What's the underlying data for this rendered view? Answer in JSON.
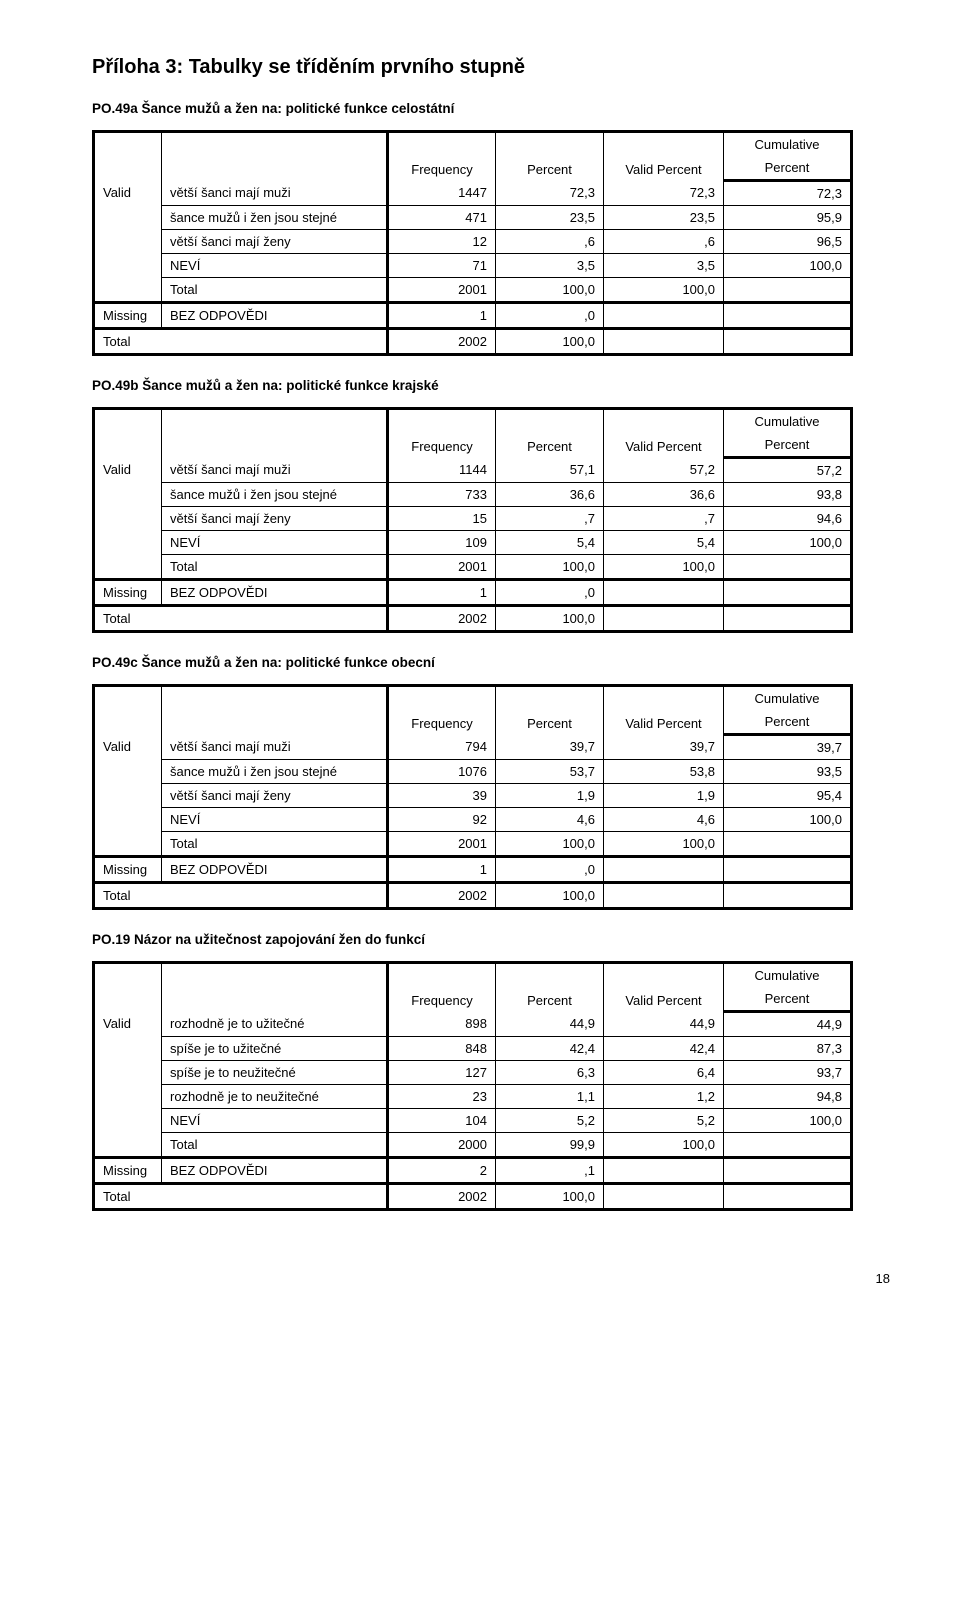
{
  "heading": "Příloha 3: Tabulky se tříděním prvního stupně",
  "col_headers": {
    "frequency": "Frequency",
    "percent": "Percent",
    "valid_percent": "Valid Percent",
    "cumulative": "Cumulative",
    "cumulative2": "Percent"
  },
  "stub": {
    "valid": "Valid",
    "missing": "Missing",
    "total": "Total"
  },
  "tables": [
    {
      "title": "PO.49a Šance mužů a žen na: politické funkce celostátní",
      "rows": [
        {
          "group": "valid",
          "label": "větší šanci mají muži",
          "f": "1447",
          "p": "72,3",
          "vp": "72,3",
          "cp": "72,3"
        },
        {
          "group": "valid",
          "label": "šance mužů i žen jsou stejné",
          "f": "471",
          "p": "23,5",
          "vp": "23,5",
          "cp": "95,9"
        },
        {
          "group": "valid",
          "label": "větší šanci mají ženy",
          "f": "12",
          "p": ",6",
          "vp": ",6",
          "cp": "96,5"
        },
        {
          "group": "valid",
          "label": "NEVÍ",
          "f": "71",
          "p": "3,5",
          "vp": "3,5",
          "cp": "100,0"
        },
        {
          "group": "valid",
          "label": "Total",
          "f": "2001",
          "p": "100,0",
          "vp": "100,0",
          "cp": ""
        },
        {
          "group": "missing",
          "label": "BEZ ODPOVĚDI",
          "f": "1",
          "p": ",0",
          "vp": "",
          "cp": ""
        },
        {
          "group": "total",
          "label": "",
          "f": "2002",
          "p": "100,0",
          "vp": "",
          "cp": ""
        }
      ]
    },
    {
      "title": "PO.49b Šance mužů a žen na: politické funkce krajské",
      "rows": [
        {
          "group": "valid",
          "label": "větší šanci mají muži",
          "f": "1144",
          "p": "57,1",
          "vp": "57,2",
          "cp": "57,2"
        },
        {
          "group": "valid",
          "label": "šance mužů i žen jsou stejné",
          "f": "733",
          "p": "36,6",
          "vp": "36,6",
          "cp": "93,8"
        },
        {
          "group": "valid",
          "label": "větší šanci mají ženy",
          "f": "15",
          "p": ",7",
          "vp": ",7",
          "cp": "94,6"
        },
        {
          "group": "valid",
          "label": "NEVÍ",
          "f": "109",
          "p": "5,4",
          "vp": "5,4",
          "cp": "100,0"
        },
        {
          "group": "valid",
          "label": "Total",
          "f": "2001",
          "p": "100,0",
          "vp": "100,0",
          "cp": ""
        },
        {
          "group": "missing",
          "label": "BEZ ODPOVĚDI",
          "f": "1",
          "p": ",0",
          "vp": "",
          "cp": ""
        },
        {
          "group": "total",
          "label": "",
          "f": "2002",
          "p": "100,0",
          "vp": "",
          "cp": ""
        }
      ]
    },
    {
      "title": "PO.49c Šance mužů a žen na: politické funkce obecní",
      "rows": [
        {
          "group": "valid",
          "label": "větší šanci mají muži",
          "f": "794",
          "p": "39,7",
          "vp": "39,7",
          "cp": "39,7"
        },
        {
          "group": "valid",
          "label": "šance mužů i žen jsou stejné",
          "f": "1076",
          "p": "53,7",
          "vp": "53,8",
          "cp": "93,5"
        },
        {
          "group": "valid",
          "label": "větší šanci mají ženy",
          "f": "39",
          "p": "1,9",
          "vp": "1,9",
          "cp": "95,4"
        },
        {
          "group": "valid",
          "label": "NEVÍ",
          "f": "92",
          "p": "4,6",
          "vp": "4,6",
          "cp": "100,0"
        },
        {
          "group": "valid",
          "label": "Total",
          "f": "2001",
          "p": "100,0",
          "vp": "100,0",
          "cp": ""
        },
        {
          "group": "missing",
          "label": "BEZ ODPOVĚDI",
          "f": "1",
          "p": ",0",
          "vp": "",
          "cp": ""
        },
        {
          "group": "total",
          "label": "",
          "f": "2002",
          "p": "100,0",
          "vp": "",
          "cp": ""
        }
      ]
    },
    {
      "title": "PO.19 Názor na užitečnost zapojování žen do funkcí",
      "rows": [
        {
          "group": "valid",
          "label": "rozhodně je to užitečné",
          "f": "898",
          "p": "44,9",
          "vp": "44,9",
          "cp": "44,9"
        },
        {
          "group": "valid",
          "label": "spíše je to užitečné",
          "f": "848",
          "p": "42,4",
          "vp": "42,4",
          "cp": "87,3"
        },
        {
          "group": "valid",
          "label": "spíše je to neužitečné",
          "f": "127",
          "p": "6,3",
          "vp": "6,4",
          "cp": "93,7"
        },
        {
          "group": "valid",
          "label": "rozhodně je to neužitečné",
          "f": "23",
          "p": "1,1",
          "vp": "1,2",
          "cp": "94,8"
        },
        {
          "group": "valid",
          "label": "NEVÍ",
          "f": "104",
          "p": "5,2",
          "vp": "5,2",
          "cp": "100,0"
        },
        {
          "group": "valid",
          "label": "Total",
          "f": "2000",
          "p": "99,9",
          "vp": "100,0",
          "cp": ""
        },
        {
          "group": "missing",
          "label": "BEZ ODPOVĚDI",
          "f": "2",
          "p": ",1",
          "vp": "",
          "cp": ""
        },
        {
          "group": "total",
          "label": "",
          "f": "2002",
          "p": "100,0",
          "vp": "",
          "cp": ""
        }
      ]
    }
  ],
  "page_number": "18"
}
